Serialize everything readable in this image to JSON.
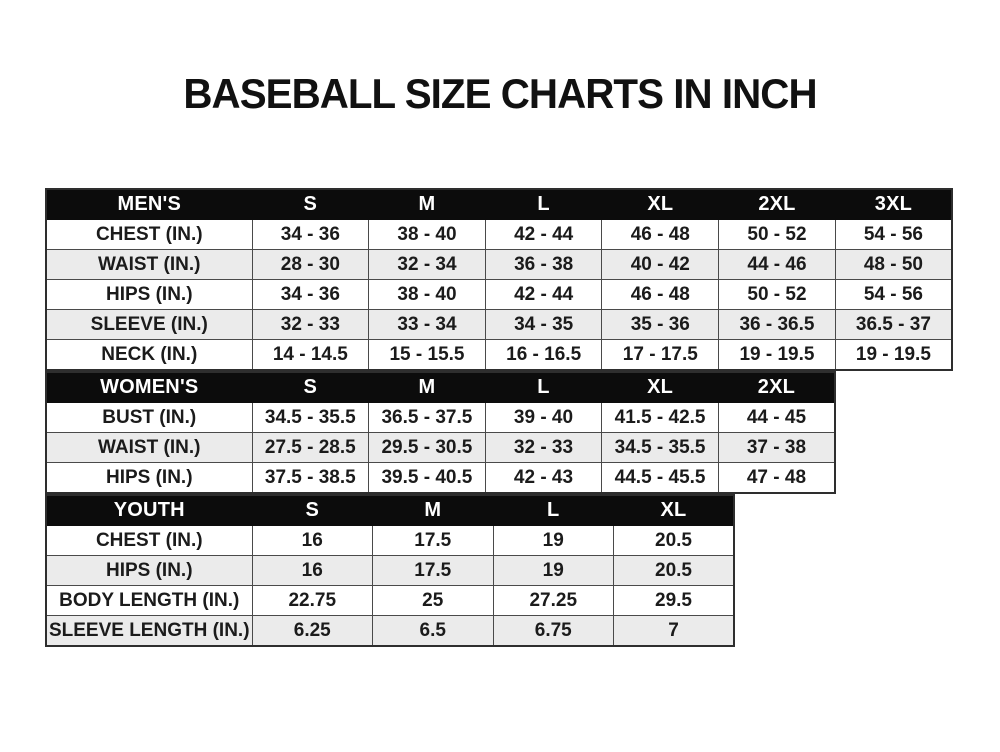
{
  "page": {
    "title": "BASEBALL SIZE CHARTS IN INCH"
  },
  "colors": {
    "header_bg": "#0c0c0c",
    "header_text": "#ffffff",
    "row_bg": "#ffffff",
    "row_alt_bg": "#ebebeb",
    "border": "#4a4a4a",
    "text": "#1b1b1b",
    "page_bg": "#ffffff"
  },
  "chart_data": [
    {
      "type": "table",
      "title": "MEN'S",
      "columns": [
        "MEN'S",
        "S",
        "M",
        "L",
        "XL",
        "2XL",
        "3XL"
      ],
      "rows": [
        [
          "CHEST (IN.)",
          "34 - 36",
          "38 - 40",
          "42 - 44",
          "46 - 48",
          "50 - 52",
          "54 - 56"
        ],
        [
          "WAIST (IN.)",
          "28 - 30",
          "32 - 34",
          "36 - 38",
          "40 - 42",
          "44 - 46",
          "48 - 50"
        ],
        [
          "HIPS (IN.)",
          "34 - 36",
          "38 - 40",
          "42 - 44",
          "46 - 48",
          "50 - 52",
          "54 - 56"
        ],
        [
          "SLEEVE (IN.)",
          "32 - 33",
          "33 - 34",
          "34 - 35",
          "35 - 36",
          "36 - 36.5",
          "36.5 - 37"
        ],
        [
          "NECK (IN.)",
          "14 - 14.5",
          "15 - 15.5",
          "16 - 16.5",
          "17 - 17.5",
          "19 - 19.5",
          "19 - 19.5"
        ]
      ]
    },
    {
      "type": "table",
      "title": "WOMEN'S",
      "columns": [
        "WOMEN'S",
        "S",
        "M",
        "L",
        "XL",
        "2XL"
      ],
      "rows": [
        [
          "BUST (IN.)",
          "34.5 - 35.5",
          "36.5 - 37.5",
          "39 - 40",
          "41.5 - 42.5",
          "44 - 45"
        ],
        [
          "WAIST (IN.)",
          "27.5 - 28.5",
          "29.5 - 30.5",
          "32 - 33",
          "34.5 - 35.5",
          "37 - 38"
        ],
        [
          "HIPS (IN.)",
          "37.5 - 38.5",
          "39.5 - 40.5",
          "42 - 43",
          "44.5 - 45.5",
          "47 - 48"
        ]
      ]
    },
    {
      "type": "table",
      "title": "YOUTH",
      "columns": [
        "YOUTH",
        "S",
        "M",
        "L",
        "XL"
      ],
      "rows": [
        [
          "CHEST (IN.)",
          "16",
          "17.5",
          "19",
          "20.5"
        ],
        [
          "HIPS (IN.)",
          "16",
          "17.5",
          "19",
          "20.5"
        ],
        [
          "BODY LENGTH (IN.)",
          "22.75",
          "25",
          "27.25",
          "29.5"
        ],
        [
          "SLEEVE LENGTH (IN.)",
          "6.25",
          "6.5",
          "6.75",
          "7"
        ]
      ]
    }
  ]
}
